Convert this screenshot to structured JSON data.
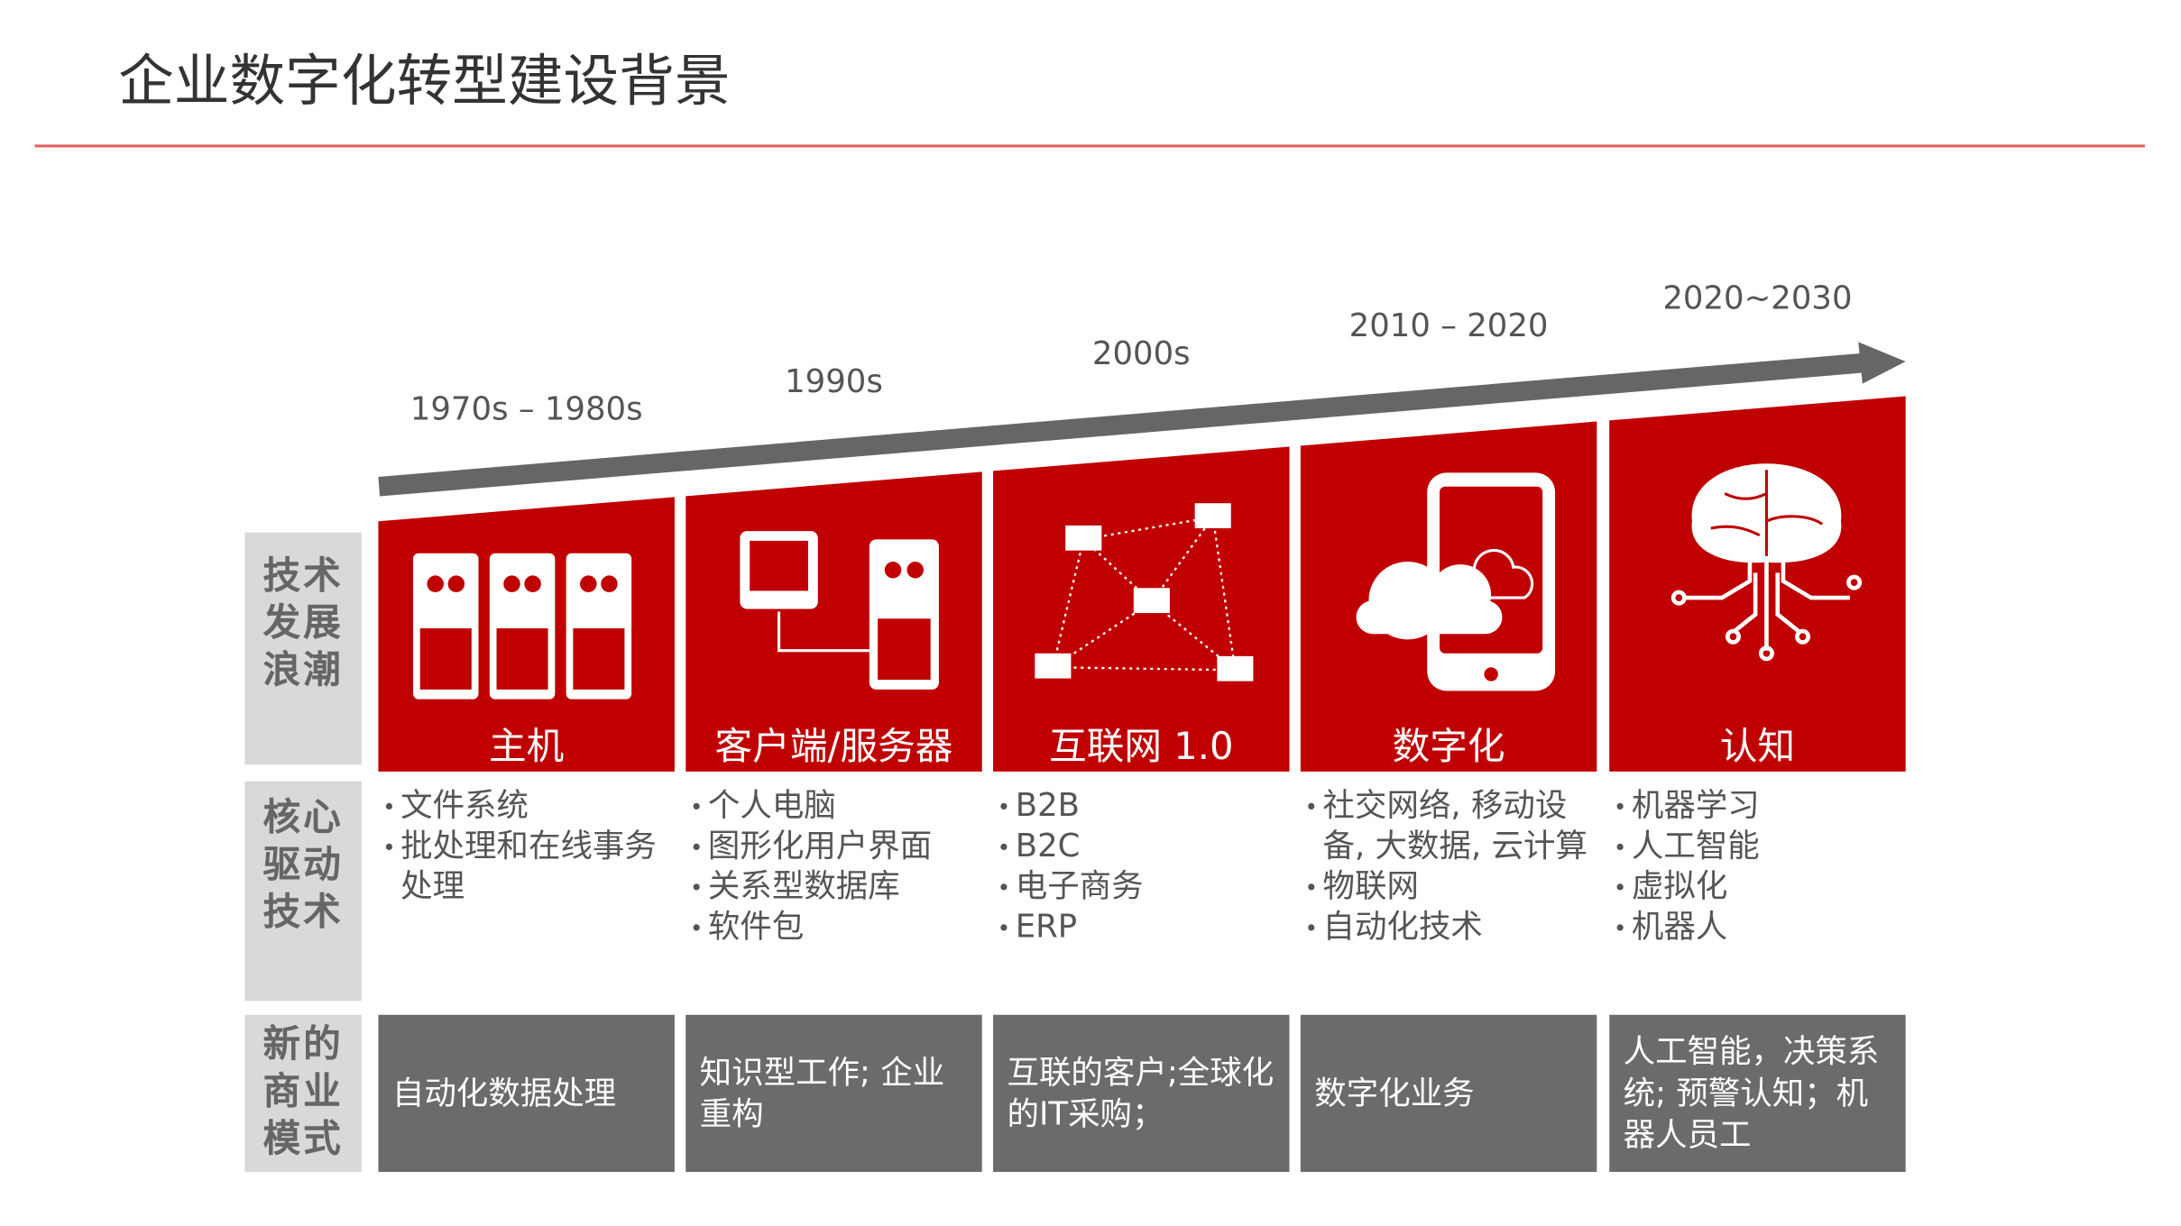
{
  "header": {
    "title": "企业数字化转型建设背景"
  },
  "row_labels": [
    "技术发展浪潮",
    "核心驱动技术",
    "新的商业模式"
  ],
  "columns": [
    {
      "era": "1970s – 1980s",
      "heading": "主机",
      "technologies": [
        "文件系统",
        "批处理和在线事务处理"
      ],
      "business_model": "自动化数据处理"
    },
    {
      "era": "1990s",
      "heading": "客户端/服务器",
      "technologies": [
        "个人电脑",
        "图形化用户界面",
        "关系型数据库",
        "软件包"
      ],
      "business_model": "知识型工作; 企业重构"
    },
    {
      "era": "2000s",
      "heading": "互联网 1.0",
      "technologies": [
        "B2B",
        "B2C",
        "电子商务",
        "ERP"
      ],
      "business_model": "互联的客户;全球化的IT采购；"
    },
    {
      "era": "2010 – 2020",
      "heading": "数字化",
      "technologies": [
        "社交网络, 移动设备, 大数据, 云计算",
        "物联网",
        "自动化技术"
      ],
      "business_model": "数字化业务"
    },
    {
      "era": "2020~2030",
      "heading": "认知",
      "technologies": [
        "机器学习",
        "人工智能",
        "虚拟化",
        "机器人"
      ],
      "business_model": "人工智能，决策系统; 预警认知；机器人员工"
    }
  ]
}
